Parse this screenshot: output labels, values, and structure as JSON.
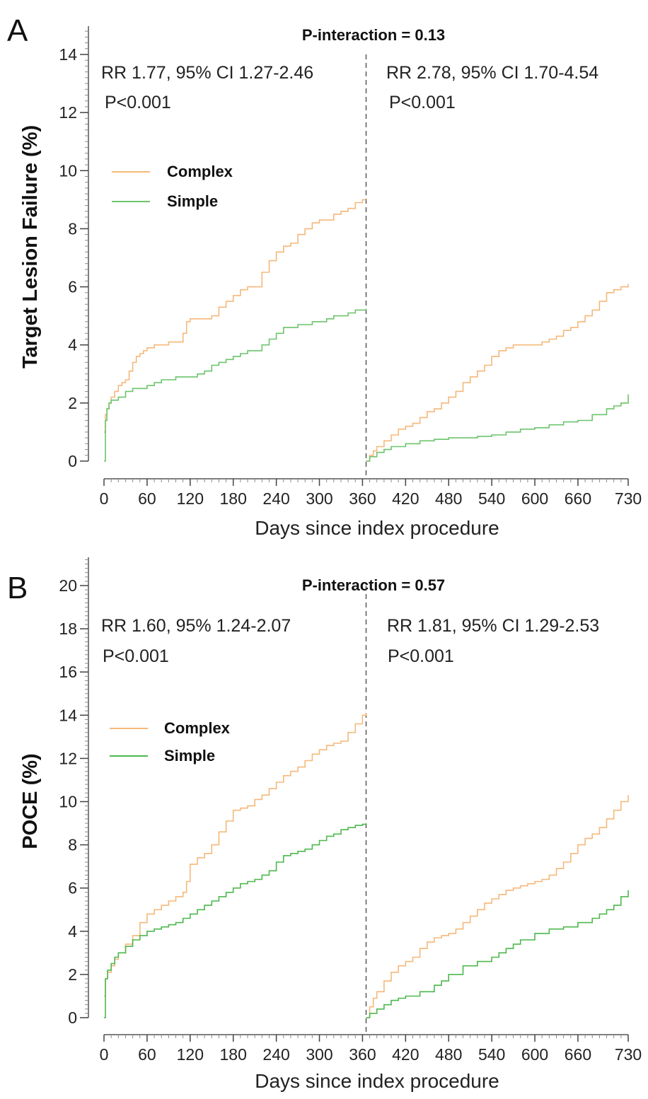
{
  "chart_data": [
    {
      "panel_label": "A",
      "type": "line",
      "title": "P-interaction = 0.13",
      "xlabel": "Days since index procedure",
      "ylabel": "Target Lesion Failure (%)",
      "xlim": [
        0,
        730
      ],
      "ylim": [
        0,
        14
      ],
      "x_ticks": [
        "0",
        "60",
        "120",
        "180",
        "240",
        "300",
        "360",
        "420",
        "480",
        "540",
        "600",
        "660",
        "730"
      ],
      "y_ticks": [
        "0",
        "2",
        "4",
        "6",
        "8",
        "10",
        "12",
        "14"
      ],
      "landmark_day": 365,
      "annotations": {
        "left_rr": "RR 1.77, 95% CI 1.27-2.46",
        "left_p": "P<0.001",
        "right_rr": "RR 2.78, 95% CI 1.70-4.54",
        "right_p": "P<0.001"
      },
      "legend": {
        "position": "upper-left",
        "complex": "Complex",
        "simple": "Simple"
      },
      "colors": {
        "complex": "#f5b87a",
        "simple": "#6cc46c"
      },
      "series": [
        {
          "name": "Complex",
          "segments": [
            {
              "x": [
                0,
                2,
                4,
                7,
                10,
                15,
                20,
                25,
                30,
                35,
                40,
                45,
                50,
                55,
                60,
                70,
                80,
                90,
                100,
                110,
                115,
                120,
                130,
                140,
                150,
                160,
                170,
                180,
                190,
                200,
                210,
                220,
                230,
                240,
                250,
                260,
                270,
                280,
                290,
                300,
                310,
                320,
                330,
                340,
                350,
                360,
                365
              ],
              "y": [
                1.0,
                1.6,
                1.8,
                2.0,
                2.2,
                2.4,
                2.6,
                2.7,
                2.8,
                3.1,
                3.4,
                3.6,
                3.7,
                3.8,
                3.9,
                4.0,
                4.0,
                4.1,
                4.1,
                4.4,
                4.8,
                4.9,
                4.9,
                4.9,
                5.0,
                5.3,
                5.5,
                5.7,
                5.9,
                6.0,
                6.0,
                6.5,
                6.9,
                7.2,
                7.4,
                7.5,
                7.8,
                8.0,
                8.2,
                8.3,
                8.3,
                8.5,
                8.6,
                8.7,
                8.9,
                9.0,
                9.0
              ]
            },
            {
              "x": [
                365,
                370,
                375,
                380,
                390,
                400,
                410,
                420,
                430,
                440,
                450,
                460,
                470,
                480,
                490,
                500,
                510,
                520,
                530,
                540,
                550,
                560,
                570,
                580,
                590,
                600,
                610,
                620,
                630,
                640,
                650,
                660,
                670,
                680,
                690,
                700,
                710,
                720,
                730
              ],
              "y": [
                0,
                0.2,
                0.35,
                0.5,
                0.7,
                0.9,
                1.1,
                1.2,
                1.3,
                1.5,
                1.7,
                1.8,
                2.0,
                2.2,
                2.4,
                2.7,
                2.9,
                3.1,
                3.3,
                3.6,
                3.8,
                3.9,
                4.0,
                4.0,
                4.0,
                4.0,
                4.1,
                4.2,
                4.3,
                4.5,
                4.6,
                4.8,
                5.0,
                5.2,
                5.5,
                5.8,
                5.9,
                6.0,
                6.1
              ]
            }
          ]
        },
        {
          "name": "Simple",
          "segments": [
            {
              "x": [
                0,
                2,
                4,
                7,
                10,
                20,
                30,
                40,
                50,
                60,
                70,
                80,
                90,
                100,
                110,
                120,
                130,
                140,
                150,
                160,
                170,
                180,
                190,
                200,
                210,
                220,
                230,
                240,
                250,
                260,
                270,
                280,
                290,
                300,
                310,
                320,
                330,
                340,
                350,
                360,
                365
              ],
              "y": [
                0,
                1.4,
                1.8,
                2.0,
                2.1,
                2.2,
                2.4,
                2.5,
                2.5,
                2.6,
                2.7,
                2.8,
                2.8,
                2.9,
                2.9,
                2.9,
                3.0,
                3.1,
                3.3,
                3.4,
                3.5,
                3.6,
                3.7,
                3.8,
                3.8,
                4.0,
                4.2,
                4.4,
                4.6,
                4.6,
                4.7,
                4.7,
                4.8,
                4.8,
                4.9,
                5.0,
                5.0,
                5.1,
                5.2,
                5.2,
                5.25
              ]
            },
            {
              "x": [
                365,
                370,
                380,
                390,
                400,
                420,
                440,
                460,
                480,
                500,
                520,
                540,
                560,
                580,
                600,
                620,
                640,
                660,
                680,
                700,
                710,
                720,
                730
              ],
              "y": [
                0,
                0.15,
                0.3,
                0.4,
                0.5,
                0.6,
                0.7,
                0.75,
                0.8,
                0.8,
                0.85,
                0.9,
                1.0,
                1.1,
                1.15,
                1.25,
                1.35,
                1.4,
                1.6,
                1.8,
                1.9,
                2.0,
                2.3
              ]
            }
          ]
        }
      ]
    },
    {
      "panel_label": "B",
      "type": "line",
      "title": "P-interaction = 0.57",
      "xlabel": "Days since index procedure",
      "ylabel": "POCE (%)",
      "xlim": [
        0,
        730
      ],
      "ylim": [
        0,
        20
      ],
      "x_ticks": [
        "0",
        "60",
        "120",
        "180",
        "240",
        "300",
        "360",
        "420",
        "480",
        "540",
        "600",
        "660",
        "730"
      ],
      "y_ticks": [
        "0",
        "2",
        "4",
        "6",
        "8",
        "10",
        "12",
        "14",
        "16",
        "18",
        "20"
      ],
      "landmark_day": 365,
      "annotations": {
        "left_rr": "RR 1.60, 95% 1.24-2.07",
        "left_p": "P<0.001",
        "right_rr": "RR 1.81, 95% CI 1.29-2.53",
        "right_p": "P<0.001"
      },
      "legend": {
        "position": "upper-left",
        "complex": "Complex",
        "simple": "Simple"
      },
      "colors": {
        "complex": "#f5b87a",
        "simple": "#4cb84c"
      },
      "series": [
        {
          "name": "Complex",
          "segments": [
            {
              "x": [
                0,
                2,
                5,
                10,
                15,
                20,
                30,
                40,
                50,
                60,
                70,
                80,
                90,
                100,
                110,
                115,
                120,
                130,
                140,
                150,
                160,
                170,
                180,
                190,
                200,
                210,
                220,
                230,
                240,
                250,
                260,
                270,
                280,
                290,
                300,
                310,
                320,
                330,
                340,
                350,
                360,
                365
              ],
              "y": [
                1.0,
                1.8,
                2.1,
                2.4,
                2.7,
                3.0,
                3.4,
                3.8,
                4.4,
                4.8,
                5.0,
                5.2,
                5.4,
                5.6,
                5.8,
                6.3,
                7.1,
                7.4,
                7.6,
                8.0,
                8.6,
                9.1,
                9.6,
                9.7,
                9.8,
                10.1,
                10.3,
                10.6,
                10.9,
                11.2,
                11.4,
                11.6,
                11.9,
                12.2,
                12.4,
                12.6,
                12.7,
                12.8,
                13.2,
                13.6,
                14.0,
                14.1
              ]
            },
            {
              "x": [
                365,
                370,
                375,
                380,
                390,
                400,
                410,
                420,
                430,
                440,
                450,
                460,
                470,
                480,
                490,
                500,
                510,
                520,
                530,
                540,
                550,
                560,
                570,
                580,
                590,
                600,
                610,
                620,
                630,
                640,
                650,
                660,
                670,
                680,
                690,
                700,
                710,
                720,
                730
              ],
              "y": [
                0,
                0.5,
                0.9,
                1.2,
                1.7,
                2.1,
                2.4,
                2.6,
                2.8,
                3.2,
                3.5,
                3.7,
                3.8,
                3.9,
                4.1,
                4.4,
                4.7,
                5.0,
                5.3,
                5.5,
                5.7,
                5.9,
                6.0,
                6.1,
                6.2,
                6.3,
                6.4,
                6.6,
                6.9,
                7.2,
                7.6,
                8.0,
                8.3,
                8.5,
                8.8,
                9.2,
                9.6,
                10.0,
                10.3
              ]
            }
          ]
        },
        {
          "name": "Simple",
          "segments": [
            {
              "x": [
                0,
                2,
                5,
                10,
                15,
                20,
                30,
                40,
                50,
                60,
                70,
                80,
                90,
                100,
                110,
                120,
                130,
                140,
                150,
                160,
                170,
                180,
                190,
                200,
                210,
                220,
                230,
                240,
                250,
                260,
                270,
                280,
                290,
                300,
                310,
                320,
                330,
                340,
                350,
                360,
                365
              ],
              "y": [
                0,
                1.8,
                2.2,
                2.5,
                2.8,
                3.0,
                3.3,
                3.6,
                3.8,
                4.0,
                4.1,
                4.2,
                4.3,
                4.4,
                4.6,
                4.8,
                5.0,
                5.2,
                5.4,
                5.6,
                5.8,
                6.0,
                6.2,
                6.3,
                6.4,
                6.6,
                6.8,
                7.2,
                7.5,
                7.6,
                7.7,
                7.8,
                8.0,
                8.2,
                8.4,
                8.5,
                8.7,
                8.8,
                8.9,
                8.95,
                9.0
              ]
            },
            {
              "x": [
                365,
                370,
                380,
                390,
                400,
                410,
                420,
                440,
                460,
                470,
                480,
                500,
                520,
                540,
                550,
                560,
                570,
                580,
                600,
                620,
                640,
                660,
                680,
                690,
                700,
                710,
                720,
                730
              ],
              "y": [
                0,
                0.2,
                0.4,
                0.6,
                0.8,
                0.9,
                1.0,
                1.2,
                1.5,
                1.7,
                2.0,
                2.4,
                2.6,
                2.8,
                3.0,
                3.2,
                3.4,
                3.6,
                3.9,
                4.1,
                4.2,
                4.4,
                4.6,
                4.8,
                5.0,
                5.2,
                5.6,
                5.9
              ]
            }
          ]
        }
      ]
    }
  ]
}
